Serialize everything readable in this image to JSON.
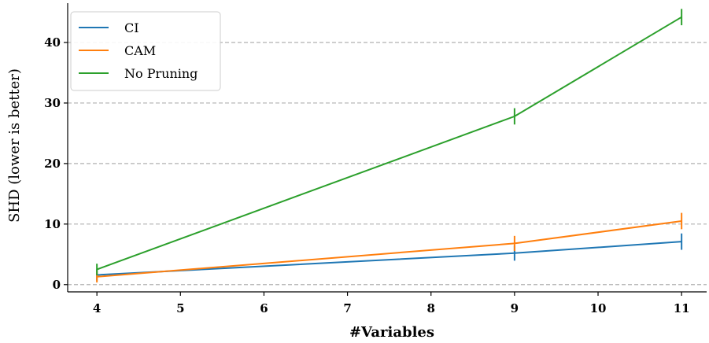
{
  "chart_data": {
    "type": "line",
    "title": "",
    "xlabel": "#Variables",
    "ylabel": "SHD (lower is better)",
    "x": [
      4,
      9,
      11
    ],
    "xticks": [
      4,
      5,
      6,
      7,
      8,
      9,
      10,
      11
    ],
    "yticks": [
      0,
      10,
      20,
      30,
      40
    ],
    "xlim": [
      3.65,
      11.3
    ],
    "ylim": [
      -1.2,
      46.5
    ],
    "grid": "horizontal-dashed",
    "legend_position": "top-left",
    "series": [
      {
        "name": "CI",
        "color": "#1f77b4",
        "values": [
          1.6,
          5.2,
          7.1
        ],
        "errors": [
          0.3,
          0.6,
          0.7
        ]
      },
      {
        "name": "CAM",
        "color": "#ff7f0e",
        "values": [
          1.3,
          6.8,
          10.5
        ],
        "errors": [
          0.3,
          0.6,
          0.7
        ]
      },
      {
        "name": "No Pruning",
        "color": "#2ca02c",
        "values": [
          2.5,
          27.8,
          44.2
        ],
        "errors": [
          0.3,
          0.7,
          0.7
        ]
      }
    ]
  }
}
